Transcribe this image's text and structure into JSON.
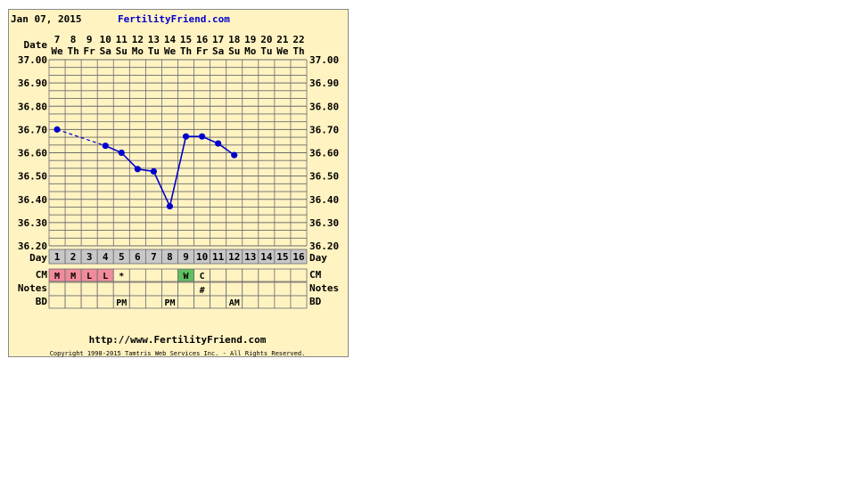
{
  "header": {
    "date": "Jan 07, 2015",
    "site": "FertilityFriend.com"
  },
  "footer": {
    "url": "http://www.FertilityFriend.com",
    "copyright": "Copyright 1998-2015 Tamtris Web Services Inc. - All Rights Reserved."
  },
  "row_labels": {
    "date": "Date",
    "day": "Day",
    "cm": "CM",
    "notes": "Notes",
    "bd": "BD"
  },
  "colors": {
    "background": "#fff3c2",
    "frame": "#888888",
    "grid": "#6b6b6b",
    "line": "#0000cc",
    "site_link": "#0000cc",
    "day_cell": "#c8c8c8",
    "cm_dry": "#f08c9a",
    "cm_egg_white": "#5fbf5f",
    "blank_cell": "#fff3c2"
  },
  "chart_data": {
    "type": "line",
    "title": "",
    "xlabel": "Day",
    "ylabel": "",
    "ylim": [
      36.2,
      37.0
    ],
    "yticks": [
      "37.00",
      "36.90",
      "36.80",
      "36.70",
      "36.60",
      "36.50",
      "36.40",
      "36.30",
      "36.20"
    ],
    "grid": true,
    "dates": [
      "7",
      "8",
      "9",
      "10",
      "11",
      "12",
      "13",
      "14",
      "15",
      "16",
      "17",
      "18",
      "19",
      "20",
      "21",
      "22"
    ],
    "weekdays": [
      "We",
      "Th",
      "Fr",
      "Sa",
      "Su",
      "Mo",
      "Tu",
      "We",
      "Th",
      "Fr",
      "Sa",
      "Su",
      "Mo",
      "Tu",
      "We",
      "Th"
    ],
    "cycle_days": [
      "1",
      "2",
      "3",
      "4",
      "5",
      "6",
      "7",
      "8",
      "9",
      "10",
      "11",
      "12",
      "13",
      "14",
      "15",
      "16"
    ],
    "series": [
      {
        "values": [
          36.7,
          null,
          null,
          36.63,
          36.6,
          36.53,
          36.52,
          36.37,
          36.67,
          36.67,
          36.64,
          36.59,
          null,
          null,
          null,
          null
        ],
        "dashed_segments": [
          [
            1,
            4
          ]
        ]
      }
    ],
    "cm": [
      "M",
      "M",
      "L",
      "L",
      "*",
      "",
      "",
      "",
      "W",
      "C",
      "",
      "",
      "",
      "",
      "",
      ""
    ],
    "cm_colors": [
      "dry",
      "dry",
      "dry",
      "dry",
      "",
      "",
      "",
      "",
      "egg_white",
      "",
      "",
      "",
      "",
      "",
      "",
      ""
    ],
    "notes": [
      "",
      "",
      "",
      "",
      "",
      "",
      "",
      "",
      "",
      "#",
      "",
      "",
      "",
      "",
      "",
      ""
    ],
    "bd": [
      "",
      "",
      "",
      "",
      "PM",
      "",
      "",
      "PM",
      "",
      "",
      "",
      "AM",
      "",
      "",
      "",
      ""
    ]
  }
}
